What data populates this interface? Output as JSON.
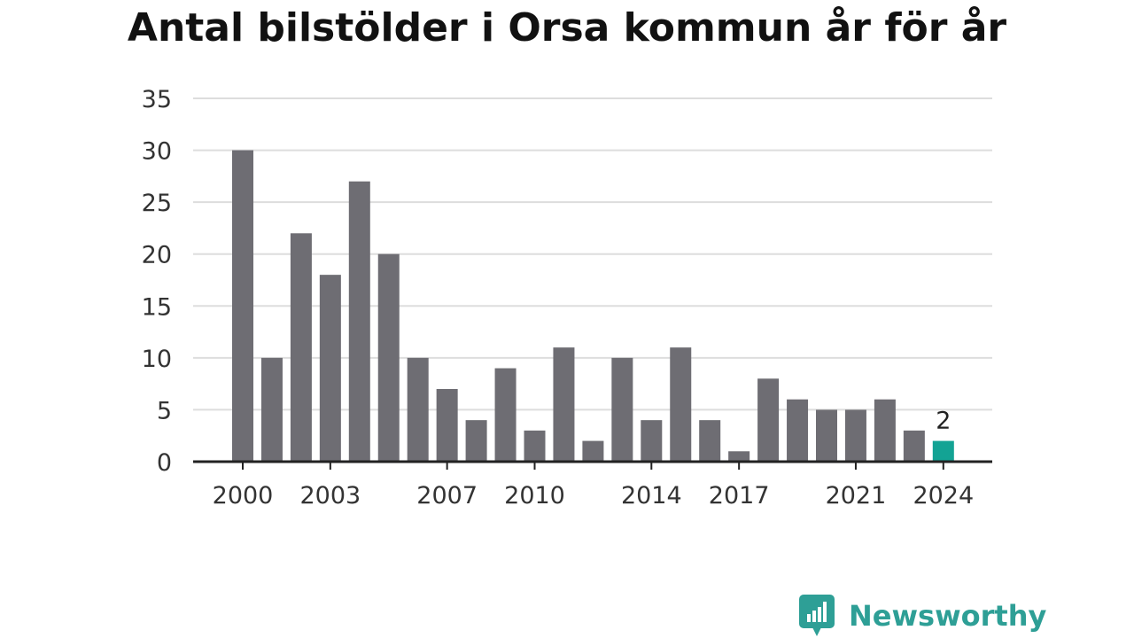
{
  "chart_data": {
    "type": "bar",
    "title": "Antal bilstölder i Orsa kommun år för år",
    "xlabel": "",
    "ylabel": "",
    "categories": [
      "2000",
      "2001",
      "2002",
      "2003",
      "2004",
      "2005",
      "2006",
      "2007",
      "2008",
      "2009",
      "2010",
      "2011",
      "2012",
      "2013",
      "2014",
      "2015",
      "2016",
      "2017",
      "2018",
      "2019",
      "2020",
      "2021",
      "2022",
      "2023",
      "2024"
    ],
    "values": [
      30,
      10,
      22,
      18,
      27,
      20,
      10,
      7,
      4,
      9,
      3,
      11,
      2,
      10,
      4,
      11,
      4,
      1,
      8,
      6,
      5,
      5,
      6,
      3,
      2
    ],
    "x_tick_labels": [
      "2000",
      "2003",
      "2007",
      "2010",
      "2014",
      "2017",
      "2021",
      "2024"
    ],
    "y_ticks": [
      0,
      5,
      10,
      15,
      20,
      25,
      30,
      35
    ],
    "ylim": [
      0,
      35
    ],
    "grid": "horizontal",
    "highlight": {
      "category": "2024",
      "label": "2"
    },
    "colors": {
      "bar": "#6e6d73",
      "highlight": "#13a394",
      "grid": "#dddddd",
      "axis": "#222222"
    }
  },
  "brand": {
    "name": "Newsworthy",
    "icon": "newsworthy-logo-icon",
    "color": "#2e9f96"
  }
}
